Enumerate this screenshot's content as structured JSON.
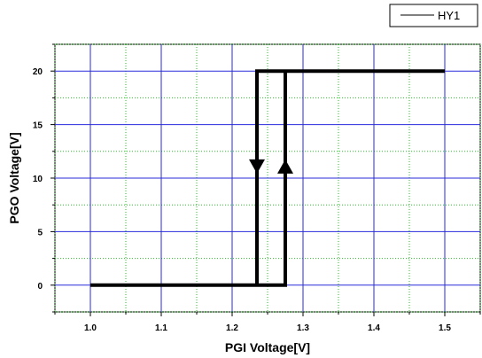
{
  "chart_data": {
    "type": "line",
    "xlabel": "PGI Voltage[V]",
    "ylabel": "PGO Voltage[V]",
    "xlim": [
      0.95,
      1.55
    ],
    "ylim": [
      -2.5,
      22.5
    ],
    "x_ticks": [
      1.0,
      1.1,
      1.2,
      1.3,
      1.4,
      1.5
    ],
    "x_tick_labels": [
      "1.0",
      "1.1",
      "1.2",
      "1.3",
      "1.4",
      "1.5"
    ],
    "y_ticks": [
      0,
      5,
      10,
      15,
      20
    ],
    "y_tick_labels": [
      "0",
      "5",
      "10",
      "15",
      "20"
    ],
    "grid": true,
    "legend_position": "top-right",
    "series": [
      {
        "name": "HY1",
        "color": "#000000",
        "x": [
          1.0,
          1.275,
          1.275,
          1.5,
          1.5,
          1.235,
          1.235,
          1.0
        ],
        "y": [
          0,
          0,
          20,
          20,
          20,
          20,
          0,
          0
        ]
      }
    ],
    "annotations": [
      {
        "kind": "arrow-down",
        "x": 1.235,
        "y": 11
      },
      {
        "kind": "arrow-up",
        "x": 1.275,
        "y": 11
      }
    ]
  }
}
